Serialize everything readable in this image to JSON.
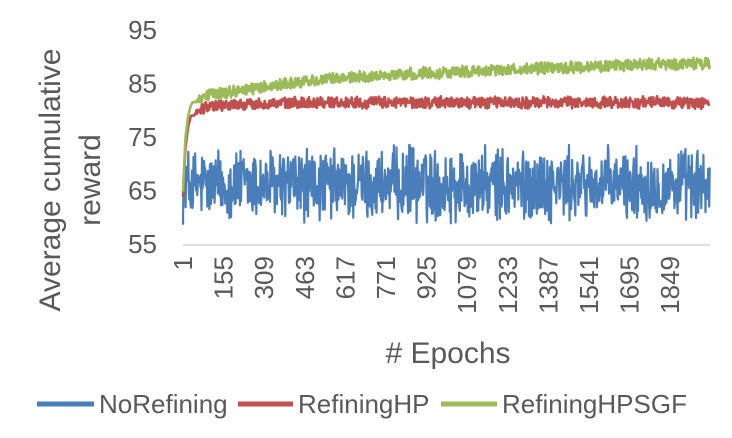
{
  "chart_data": {
    "type": "line",
    "xlabel": "# Epochs",
    "ylabel_lines": [
      "Average cumulative",
      "reward"
    ],
    "ylim": [
      55,
      95
    ],
    "yticks": [
      55,
      65,
      75,
      85,
      95
    ],
    "xlim": [
      1,
      2000
    ],
    "xticks": [
      1,
      155,
      309,
      463,
      617,
      771,
      925,
      1079,
      1233,
      1387,
      1541,
      1695,
      1849
    ],
    "grid": false,
    "legend_position": "bottom",
    "series": [
      {
        "name": "NoRefining",
        "color": "#4a7ebb",
        "x": [
          1,
          20,
          50,
          100,
          150,
          200,
          250,
          300,
          350,
          400,
          450,
          500,
          550,
          600,
          650,
          700,
          750,
          800,
          850,
          900,
          950,
          1000,
          1050,
          1100,
          1150,
          1200,
          1250,
          1300,
          1350,
          1400,
          1450,
          1500,
          1550,
          1600,
          1650,
          1700,
          1750,
          1800,
          1850,
          1900,
          1950,
          2000
        ],
        "y": [
          66,
          66,
          66,
          66,
          66,
          66,
          66,
          66,
          66,
          66,
          66,
          66,
          66,
          66,
          66,
          66,
          66,
          66,
          66,
          66,
          66,
          66,
          66,
          66,
          66,
          66,
          66,
          66,
          66,
          66,
          66,
          66,
          66,
          66,
          66,
          66,
          66,
          66,
          66,
          66,
          66,
          66
        ],
        "noise_range": [
          59,
          73
        ],
        "notable_peak": {
          "x": 860,
          "y": 75
        }
      },
      {
        "name": "RefiningHP",
        "color": "#c0504d",
        "x": [
          1,
          10,
          20,
          30,
          40,
          60,
          80,
          100,
          150,
          200,
          300,
          400,
          500,
          600,
          700,
          800,
          900,
          1000,
          1100,
          1200,
          1300,
          1400,
          1500,
          1600,
          1700,
          1800,
          1900,
          2000
        ],
        "y": [
          63,
          72,
          76,
          78,
          79,
          80,
          80.5,
          80.8,
          81,
          81,
          81.2,
          81.3,
          81.5,
          81.5,
          81.4,
          81.5,
          81.4,
          81.5,
          81.4,
          81.5,
          81.4,
          81.5,
          81.4,
          81.5,
          81.4,
          81.5,
          81.4,
          81.3
        ],
        "noise_range": [
          79.5,
          83.5
        ]
      },
      {
        "name": "RefiningHPSGF",
        "color": "#9bbb59",
        "x": [
          1,
          10,
          20,
          30,
          40,
          60,
          80,
          100,
          150,
          200,
          300,
          400,
          500,
          600,
          700,
          800,
          900,
          1000,
          1100,
          1200,
          1300,
          1400,
          1500,
          1600,
          1700,
          1800,
          1900,
          2000
        ],
        "y": [
          64,
          74,
          78,
          80,
          81,
          82,
          82.5,
          82.8,
          83.3,
          83.6,
          84.3,
          85,
          85.5,
          86,
          86.3,
          86.6,
          86.9,
          87.1,
          87.3,
          87.5,
          87.7,
          87.9,
          88.1,
          88.2,
          88.4,
          88.6,
          88.7,
          88.8
        ],
        "noise_range": [
          82,
          90
        ]
      }
    ]
  }
}
